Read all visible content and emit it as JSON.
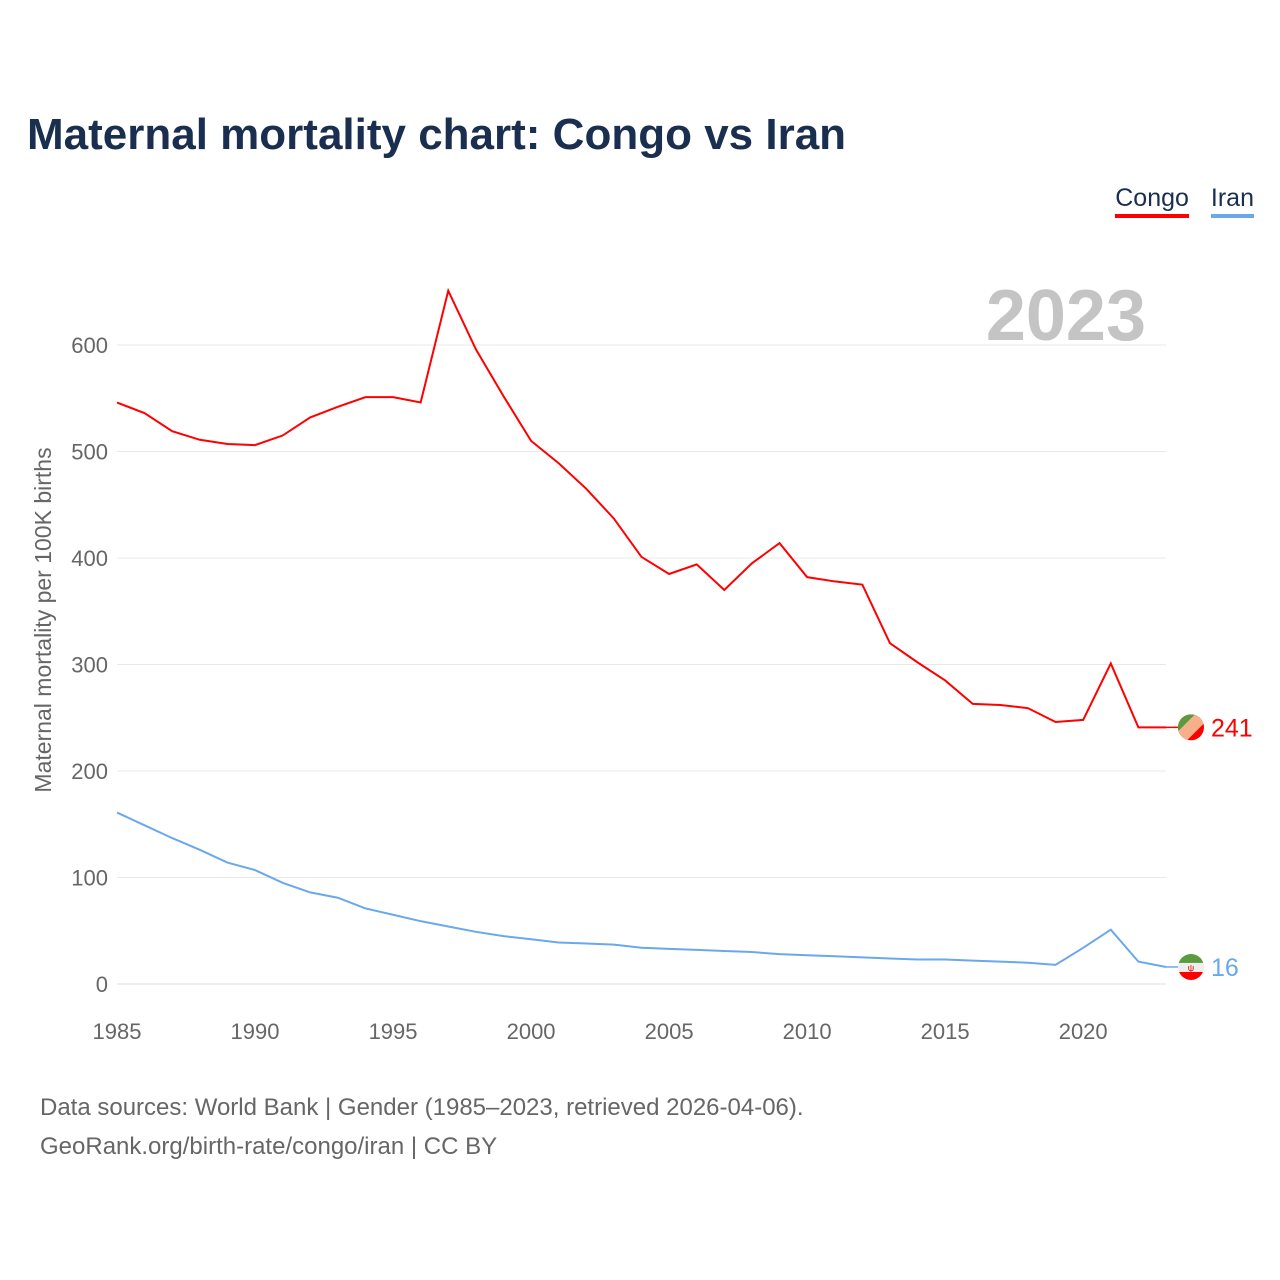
{
  "chart_data": {
    "type": "line",
    "title": "Maternal mortality chart: Congo vs Iran",
    "ylabel": "Maternal mortality per 100K births",
    "xlabel": "",
    "year_label": "2023",
    "x": [
      1985,
      1986,
      1987,
      1988,
      1989,
      1990,
      1991,
      1992,
      1993,
      1994,
      1995,
      1996,
      1997,
      1998,
      1999,
      2000,
      2001,
      2002,
      2003,
      2004,
      2005,
      2006,
      2007,
      2008,
      2009,
      2010,
      2011,
      2012,
      2013,
      2014,
      2015,
      2016,
      2017,
      2018,
      2019,
      2020,
      2021,
      2022,
      2023
    ],
    "xlim": [
      1985,
      2023
    ],
    "ylim": [
      0,
      650
    ],
    "xticks": [
      1985,
      1990,
      1995,
      2000,
      2005,
      2010,
      2015,
      2020
    ],
    "yticks": [
      0,
      100,
      200,
      300,
      400,
      500,
      600
    ],
    "grid": true,
    "legend_position": "top-right",
    "series": [
      {
        "name": "Congo",
        "color": "#ff0000",
        "end_label": "241",
        "values": [
          546,
          536,
          519,
          511,
          507,
          506,
          515,
          532,
          542,
          551,
          551,
          546,
          651,
          596,
          552,
          510,
          489,
          465,
          437,
          401,
          385,
          394,
          370,
          395,
          414,
          382,
          378,
          375,
          320,
          302,
          285,
          263,
          262,
          259,
          246,
          248,
          301,
          241,
          241
        ]
      },
      {
        "name": "Iran",
        "color": "#6aa8ec",
        "end_label": "16",
        "values": [
          161,
          149,
          137,
          126,
          114,
          107,
          95,
          86,
          81,
          71,
          65,
          59,
          54,
          49,
          45,
          42,
          39,
          38,
          37,
          34,
          33,
          32,
          31,
          30,
          28,
          27,
          26,
          25,
          24,
          23,
          23,
          22,
          21,
          20,
          18,
          34,
          51,
          21,
          16
        ]
      }
    ]
  },
  "footer": {
    "line1": "Data sources: World Bank | Gender (1985–2023, retrieved 2026-04-06).",
    "line2": "GeoRank.org/birth-rate/congo/iran | CC BY"
  }
}
